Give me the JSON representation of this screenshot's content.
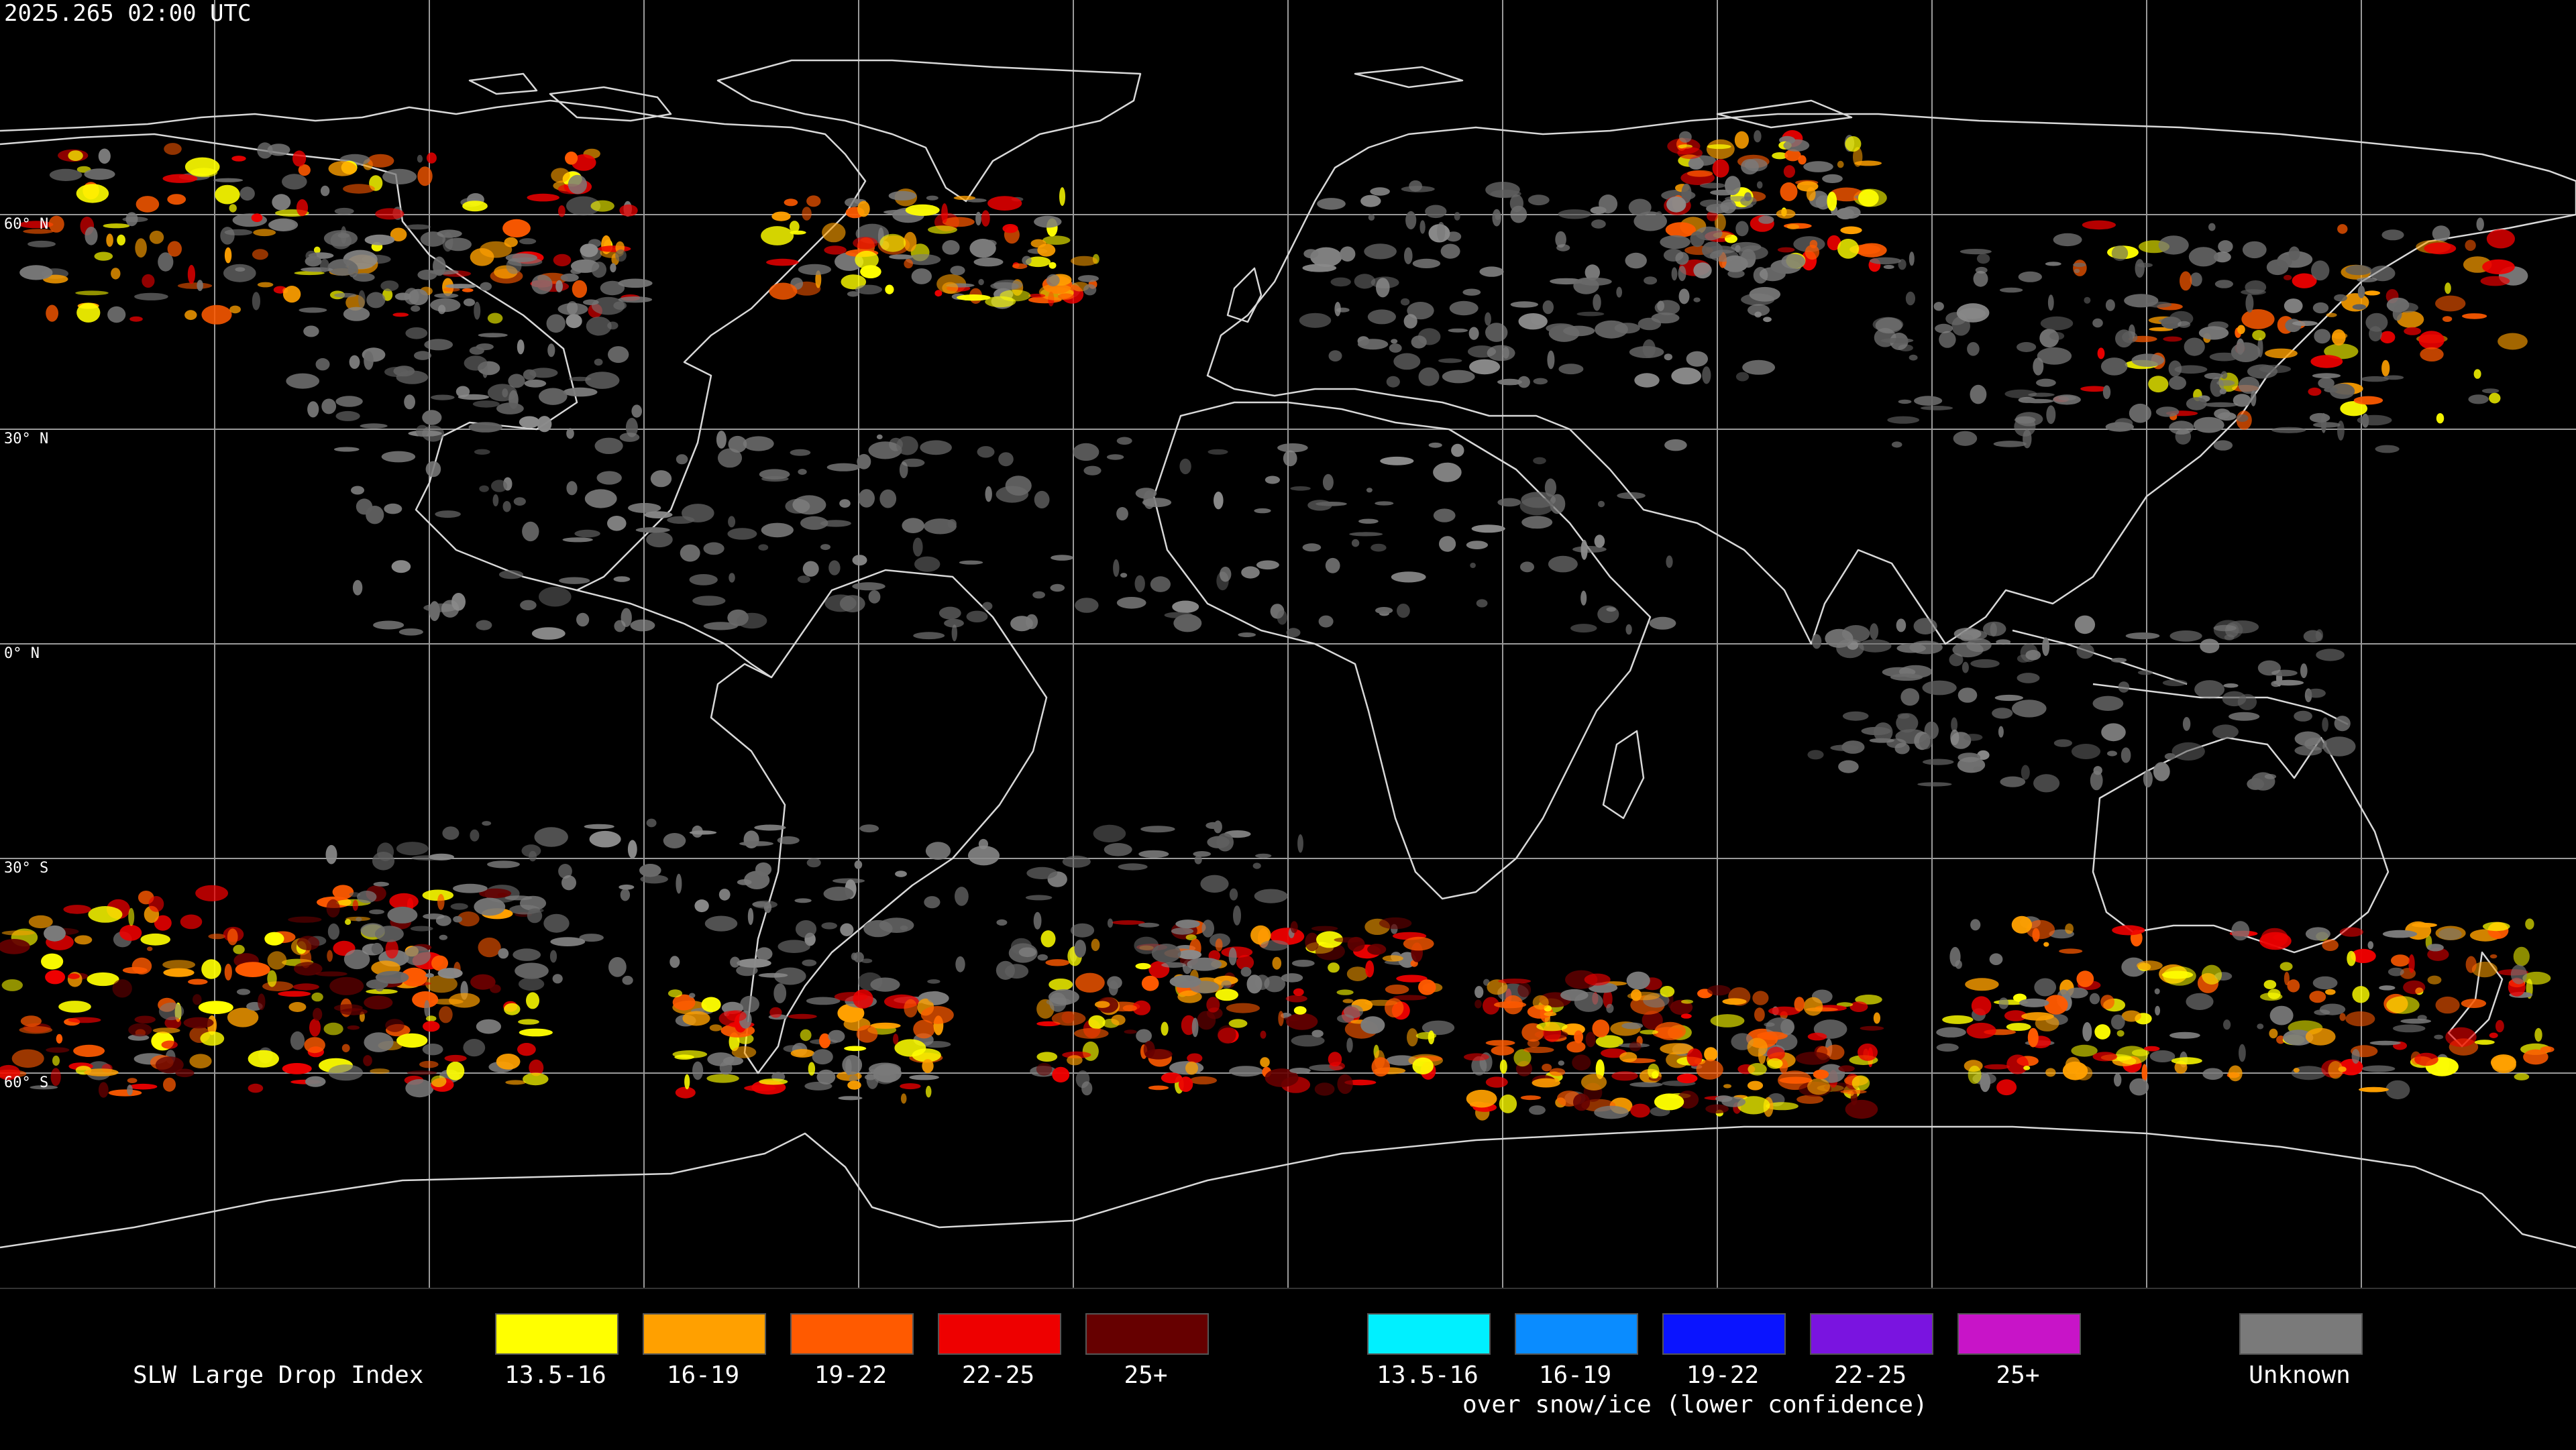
{
  "timestamp": "2025.265 02:00 UTC",
  "latitude_labels": [
    "60° N",
    "30° N",
    "0° N",
    "30° S",
    "60° S"
  ],
  "legend": {
    "title": "SLW Large Drop Index",
    "normal": [
      {
        "label": "13.5-16",
        "color": "#ffff00"
      },
      {
        "label": "16-19",
        "color": "#ffa000"
      },
      {
        "label": "19-22",
        "color": "#ff5a00"
      },
      {
        "label": "22-25",
        "color": "#ee0000"
      },
      {
        "label": "25+",
        "color": "#660000"
      }
    ],
    "snow": [
      {
        "label": "13.5-16",
        "color": "#00f0ff"
      },
      {
        "label": "16-19",
        "color": "#0a8cff"
      },
      {
        "label": "19-22",
        "color": "#0a14ff"
      },
      {
        "label": "22-25",
        "color": "#7a14e0"
      },
      {
        "label": "25+",
        "color": "#c814c8"
      }
    ],
    "snow_note": "over snow/ice (lower confidence)",
    "unknown": {
      "label": "Unknown",
      "color": "#7a7a7a"
    }
  }
}
